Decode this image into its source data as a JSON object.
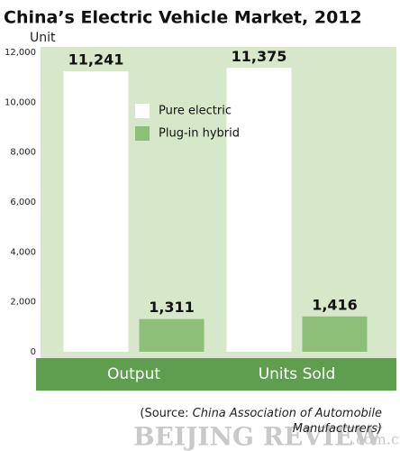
{
  "chart_data": {
    "type": "bar",
    "title": "China’s Electric Vehicle Market, 2012",
    "y_label": "Unit",
    "categories": [
      "Output",
      "Units Sold"
    ],
    "series": [
      {
        "name": "Pure electric",
        "color": "#ffffff",
        "values": [
          11241,
          11375
        ],
        "value_labels": [
          "11,241",
          "11,375"
        ]
      },
      {
        "name": "Plug-in hybrid",
        "color": "#8dbf78",
        "values": [
          1311,
          1416
        ],
        "value_labels": [
          "1,311",
          "1,416"
        ]
      }
    ],
    "ylim": [
      0,
      12000
    ],
    "yticks": [
      0,
      {
        "value": 2000,
        "label": "2,000"
      },
      {
        "value": 4000,
        "label": "4,000"
      },
      {
        "value": 6000,
        "label": "6,000"
      },
      {
        "value": 8000,
        "label": "8,000"
      },
      {
        "value": 10000,
        "label": "10,000"
      },
      {
        "value": 12000,
        "label": "12,000"
      }
    ],
    "grid": false,
    "source_prefix": "(Source:",
    "source_text": "China Association of Automobile Manufacturers)",
    "watermark": "BEIJING REVIEW",
    "watermark_suffix": ".com.cn"
  }
}
